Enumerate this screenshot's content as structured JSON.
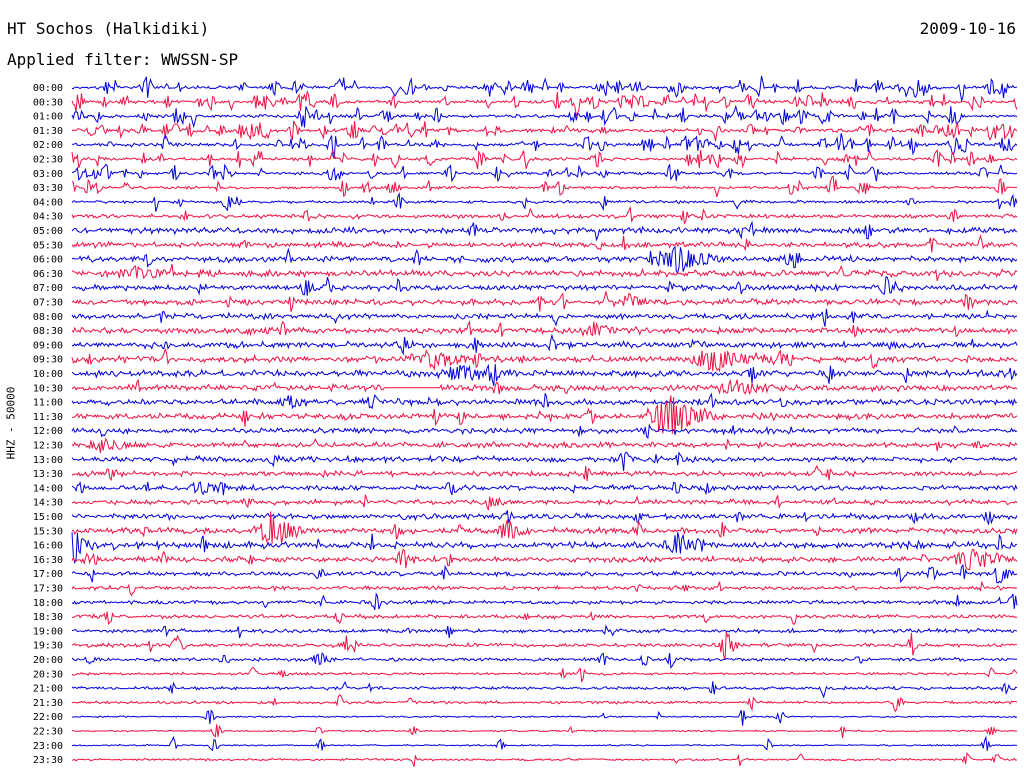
{
  "header": {
    "station": "HT Sochos (Halkidiki)",
    "date": "2009-10-16",
    "filter": "Applied filter: WWSSN-SP"
  },
  "chart_data": {
    "type": "line",
    "title": "HT Sochos (Halkidiki)",
    "subtitle": "Applied filter: WWSSN-SP",
    "date": "2009-10-16",
    "ylabel": "HHZ - 50000",
    "xlabel": "",
    "grid": false,
    "legend": "none",
    "row_interval_minutes": 30,
    "colors": [
      "#0000dd",
      "#ee1144"
    ],
    "rows": [
      "00:00",
      "00:30",
      "01:00",
      "01:30",
      "02:00",
      "02:30",
      "03:00",
      "03:30",
      "04:00",
      "04:30",
      "05:00",
      "05:30",
      "06:00",
      "06:30",
      "07:00",
      "07:30",
      "08:00",
      "08:30",
      "09:00",
      "09:30",
      "10:00",
      "10:30",
      "11:00",
      "11:30",
      "12:00",
      "12:30",
      "13:00",
      "13:30",
      "14:00",
      "14:30",
      "15:00",
      "15:30",
      "16:00",
      "16:30",
      "17:00",
      "17:30",
      "18:00",
      "18:30",
      "19:00",
      "19:30",
      "20:00",
      "20:30",
      "21:00",
      "21:30",
      "22:00",
      "22:30",
      "23:00",
      "23:30"
    ],
    "noise_levels": [
      1.2,
      1.3,
      1.2,
      1.4,
      1.3,
      1.2,
      1.1,
      1.0,
      1.0,
      1.5,
      2.2,
      2.0,
      2.2,
      2.4,
      2.2,
      2.2,
      2.0,
      2.2,
      2.2,
      2.4,
      2.4,
      2.3,
      2.2,
      2.3,
      2.0,
      2.0,
      2.0,
      1.8,
      1.8,
      1.8,
      2.0,
      2.2,
      2.4,
      2.0,
      1.6,
      1.4,
      1.4,
      1.4,
      1.4,
      1.4,
      1.2,
      1.0,
      1.2,
      1.0,
      0.6,
      0.6,
      0.6,
      0.8
    ],
    "spikes_per_row": [
      62,
      55,
      48,
      52,
      50,
      40,
      34,
      22,
      12,
      10,
      6,
      6,
      6,
      6,
      6,
      6,
      6,
      6,
      6,
      6,
      6,
      6,
      6,
      6,
      6,
      6,
      6,
      6,
      6,
      6,
      6,
      6,
      6,
      6,
      6,
      6,
      6,
      6,
      6,
      6,
      6,
      6,
      6,
      6,
      6,
      6,
      6,
      6
    ],
    "events": [
      {
        "row": 12,
        "t": 0.64,
        "amp": 14,
        "dur": 0.03
      },
      {
        "row": 13,
        "t": 0.07,
        "amp": 7,
        "dur": 0.02
      },
      {
        "row": 14,
        "t": 0.27,
        "amp": 9,
        "dur": 0.006
      },
      {
        "row": 14,
        "t": 0.86,
        "amp": 10,
        "dur": 0.012
      },
      {
        "row": 15,
        "t": 0.59,
        "amp": 7,
        "dur": 0.025
      },
      {
        "row": 17,
        "t": 0.55,
        "amp": 7,
        "dur": 0.03
      },
      {
        "row": 18,
        "t": 0.35,
        "amp": 8,
        "dur": 0.008
      },
      {
        "row": 18,
        "t": 0.66,
        "amp": 7,
        "dur": 0.006
      },
      {
        "row": 19,
        "t": 0.38,
        "amp": 9,
        "dur": 0.03
      },
      {
        "row": 19,
        "t": 0.68,
        "amp": 12,
        "dur": 0.04
      },
      {
        "row": 20,
        "t": 0.41,
        "amp": 9,
        "dur": 0.03
      },
      {
        "row": 21,
        "t": 0.7,
        "amp": 9,
        "dur": 0.03
      },
      {
        "row": 22,
        "t": 0.23,
        "amp": 10,
        "dur": 0.012
      },
      {
        "row": 23,
        "t": 0.63,
        "amp": 26,
        "dur": 0.025
      },
      {
        "row": 25,
        "t": 0.03,
        "amp": 7,
        "dur": 0.02
      },
      {
        "row": 26,
        "t": 0.64,
        "amp": 10,
        "dur": 0.006
      },
      {
        "row": 28,
        "t": 0.14,
        "amp": 7,
        "dur": 0.02
      },
      {
        "row": 28,
        "t": 0.4,
        "amp": 10,
        "dur": 0.006
      },
      {
        "row": 29,
        "t": 0.44,
        "amp": 9,
        "dur": 0.01
      },
      {
        "row": 31,
        "t": 0.21,
        "amp": 20,
        "dur": 0.02
      },
      {
        "row": 31,
        "t": 0.46,
        "amp": 12,
        "dur": 0.012
      },
      {
        "row": 32,
        "t": 0.003,
        "amp": 18,
        "dur": 0.012
      },
      {
        "row": 32,
        "t": 0.64,
        "amp": 12,
        "dur": 0.02
      },
      {
        "row": 33,
        "t": 0.35,
        "amp": 11,
        "dur": 0.01
      },
      {
        "row": 33,
        "t": 0.95,
        "amp": 11,
        "dur": 0.03
      },
      {
        "row": 34,
        "t": 0.26,
        "amp": 9,
        "dur": 0.005
      },
      {
        "row": 34,
        "t": 0.98,
        "amp": 14,
        "dur": 0.008
      },
      {
        "row": 39,
        "t": 0.11,
        "amp": 12,
        "dur": 0.006
      },
      {
        "row": 39,
        "t": 0.69,
        "amp": 18,
        "dur": 0.008
      },
      {
        "row": 40,
        "t": 0.26,
        "amp": 9,
        "dur": 0.008
      }
    ],
    "gaps": [
      {
        "row": 21,
        "start": 0.33,
        "end": 0.39
      }
    ]
  }
}
